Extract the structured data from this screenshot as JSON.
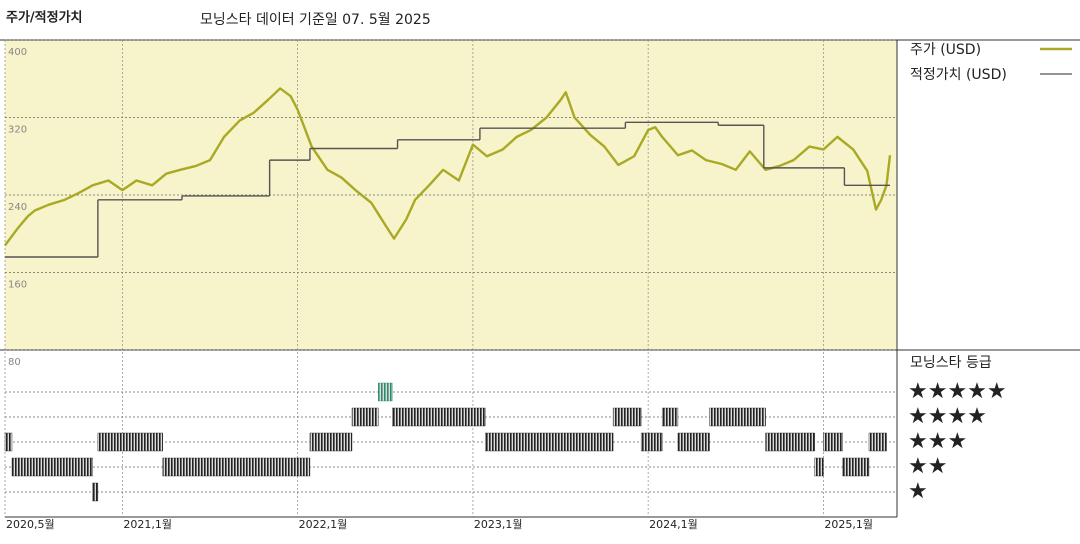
{
  "chart_data": {
    "type": "line",
    "title": "주가/적정가치",
    "subtitle": "모닝스타 데이터 기준일 07. 5월 2025",
    "xlim": [
      2020.33,
      2025.42
    ],
    "xticks": [
      {
        "value": 2020.33,
        "label": "2020,5월"
      },
      {
        "value": 2021,
        "label": "2021,1월"
      },
      {
        "value": 2022,
        "label": "2022,1월"
      },
      {
        "value": 2023,
        "label": "2023,1월"
      },
      {
        "value": 2024,
        "label": "2024,1월"
      },
      {
        "value": 2025,
        "label": "2025,1월"
      }
    ],
    "ylim": [
      80,
      400
    ],
    "yticks": [
      80,
      160,
      240,
      320,
      400
    ],
    "grid": true,
    "series": [
      {
        "name": "주가 (USD)",
        "color": "#a9a924",
        "x": [
          2020.33,
          2020.4,
          2020.46,
          2020.5,
          2020.58,
          2020.67,
          2020.75,
          2020.83,
          2020.92,
          2021.0,
          2021.08,
          2021.17,
          2021.25,
          2021.33,
          2021.42,
          2021.5,
          2021.58,
          2021.67,
          2021.75,
          2021.83,
          2021.9,
          2021.96,
          2022.0,
          2022.08,
          2022.17,
          2022.25,
          2022.33,
          2022.42,
          2022.5,
          2022.55,
          2022.62,
          2022.67,
          2022.75,
          2022.83,
          2022.92,
          2023.0,
          2023.08,
          2023.17,
          2023.25,
          2023.33,
          2023.42,
          2023.5,
          2023.53,
          2023.58,
          2023.67,
          2023.75,
          2023.83,
          2023.92,
          2024.0,
          2024.04,
          2024.08,
          2024.17,
          2024.25,
          2024.33,
          2024.42,
          2024.5,
          2024.58,
          2024.67,
          2024.75,
          2024.83,
          2024.92,
          2025.0,
          2025.08,
          2025.17,
          2025.25,
          2025.3,
          2025.33,
          2025.36,
          2025.38
        ],
        "values": [
          188,
          205,
          218,
          224,
          230,
          235,
          242,
          250,
          255,
          245,
          255,
          250,
          262,
          266,
          270,
          276,
          300,
          317,
          325,
          338,
          350,
          342,
          328,
          290,
          266,
          258,
          245,
          232,
          209,
          195,
          215,
          235,
          250,
          266,
          255,
          292,
          280,
          287,
          300,
          307,
          320,
          338,
          346,
          320,
          302,
          290,
          271,
          280,
          307,
          310,
          300,
          281,
          286,
          276,
          272,
          266,
          285,
          266,
          270,
          276,
          290,
          287,
          300,
          287,
          265,
          225,
          235,
          250,
          281
        ]
      },
      {
        "name": "적정가치 (USD)",
        "color": "#555555",
        "step": "post",
        "x": [
          2020.33,
          2020.86,
          2021.34,
          2021.84,
          2022.07,
          2022.57,
          2023.04,
          2023.87,
          2024.4,
          2024.66,
          2025.12,
          2025.38
        ],
        "values": [
          176,
          235,
          239,
          276,
          288,
          297,
          309,
          315,
          312,
          268,
          250,
          250
        ]
      }
    ],
    "rating": {
      "title": "모닝스타 등급",
      "levels": [
        {
          "value": 5,
          "label": "★★★★★"
        },
        {
          "value": 4,
          "label": "★★★★"
        },
        {
          "value": 3,
          "label": "★★★"
        },
        {
          "value": 2,
          "label": "★★"
        },
        {
          "value": 1,
          "label": "★"
        }
      ],
      "level_colors": [
        "#2e8b6e",
        "#222222",
        "#222222",
        "#222222",
        "#222222"
      ],
      "start": [
        2020.33,
        2020.37,
        2020.83,
        2020.86,
        2021.23,
        2022.07,
        2022.31,
        2022.46,
        2022.54,
        2023.07,
        2023.8,
        2023.96,
        2024.08,
        2024.17,
        2024.35,
        2024.67,
        2024.95,
        2025.0,
        2025.11,
        2025.26
      ],
      "end": [
        2020.37,
        2020.83,
        2020.86,
        2021.23,
        2022.07,
        2022.31,
        2022.46,
        2022.54,
        2023.07,
        2023.8,
        2023.96,
        2024.08,
        2024.17,
        2024.35,
        2024.67,
        2024.95,
        2025.0,
        2025.11,
        2025.26,
        2025.36
      ],
      "stars": [
        3,
        2,
        1,
        3,
        2,
        3,
        4,
        5,
        4,
        3,
        4,
        3,
        4,
        3,
        4,
        3,
        2,
        3,
        2,
        3
      ]
    }
  }
}
